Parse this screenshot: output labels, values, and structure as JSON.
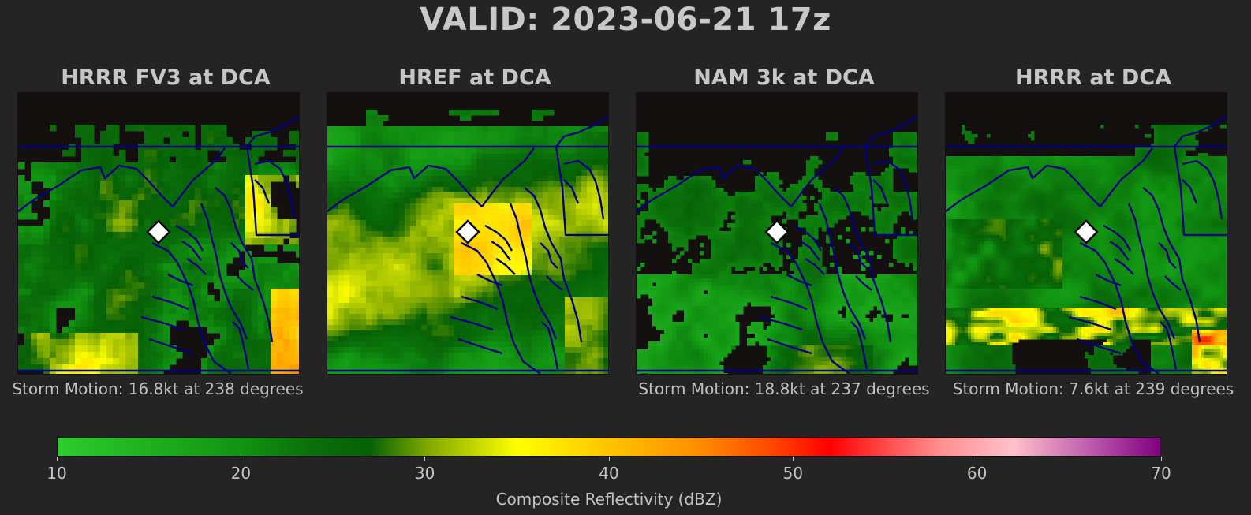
{
  "title": "VALID: 2023-06-21 17z",
  "panels": [
    {
      "title": "HRRR FV3 at DCA",
      "storm_motion": "Storm Motion: 16.8kt at 238 degrees"
    },
    {
      "title": "HREF at DCA",
      "storm_motion": ""
    },
    {
      "title": "NAM 3k at DCA",
      "storm_motion": "Storm Motion: 18.8kt at 237 degrees"
    },
    {
      "title": "HRRR at DCA",
      "storm_motion": "Storm Motion: 7.6kt at 239 degrees"
    }
  ],
  "colorbar": {
    "label": "Composite Reflectivity (dBZ)",
    "ticks": [
      "10",
      "20",
      "30",
      "40",
      "50",
      "60",
      "70"
    ],
    "min": 10,
    "max": 70,
    "stops": [
      {
        "value": 10,
        "color": "#2ecc2e"
      },
      {
        "value": 20,
        "color": "#119311"
      },
      {
        "value": 24,
        "color": "#0a6e0a"
      },
      {
        "value": 27,
        "color": "#066006"
      },
      {
        "value": 30,
        "color": "#7ca600"
      },
      {
        "value": 35,
        "color": "#ffff00"
      },
      {
        "value": 40,
        "color": "#ffc400"
      },
      {
        "value": 45,
        "color": "#ff8c00"
      },
      {
        "value": 49,
        "color": "#ff4400"
      },
      {
        "value": 52,
        "color": "#ff0000"
      },
      {
        "value": 58,
        "color": "#ff8f8f"
      },
      {
        "value": 62,
        "color": "#ffc0cb"
      },
      {
        "value": 66,
        "color": "#c060b0"
      },
      {
        "value": 70,
        "color": "#800080"
      }
    ]
  },
  "colors": {
    "background": "#242424",
    "map_background": "#141010",
    "boundaries": "#000080"
  },
  "marker": "diamond-station-marker"
}
